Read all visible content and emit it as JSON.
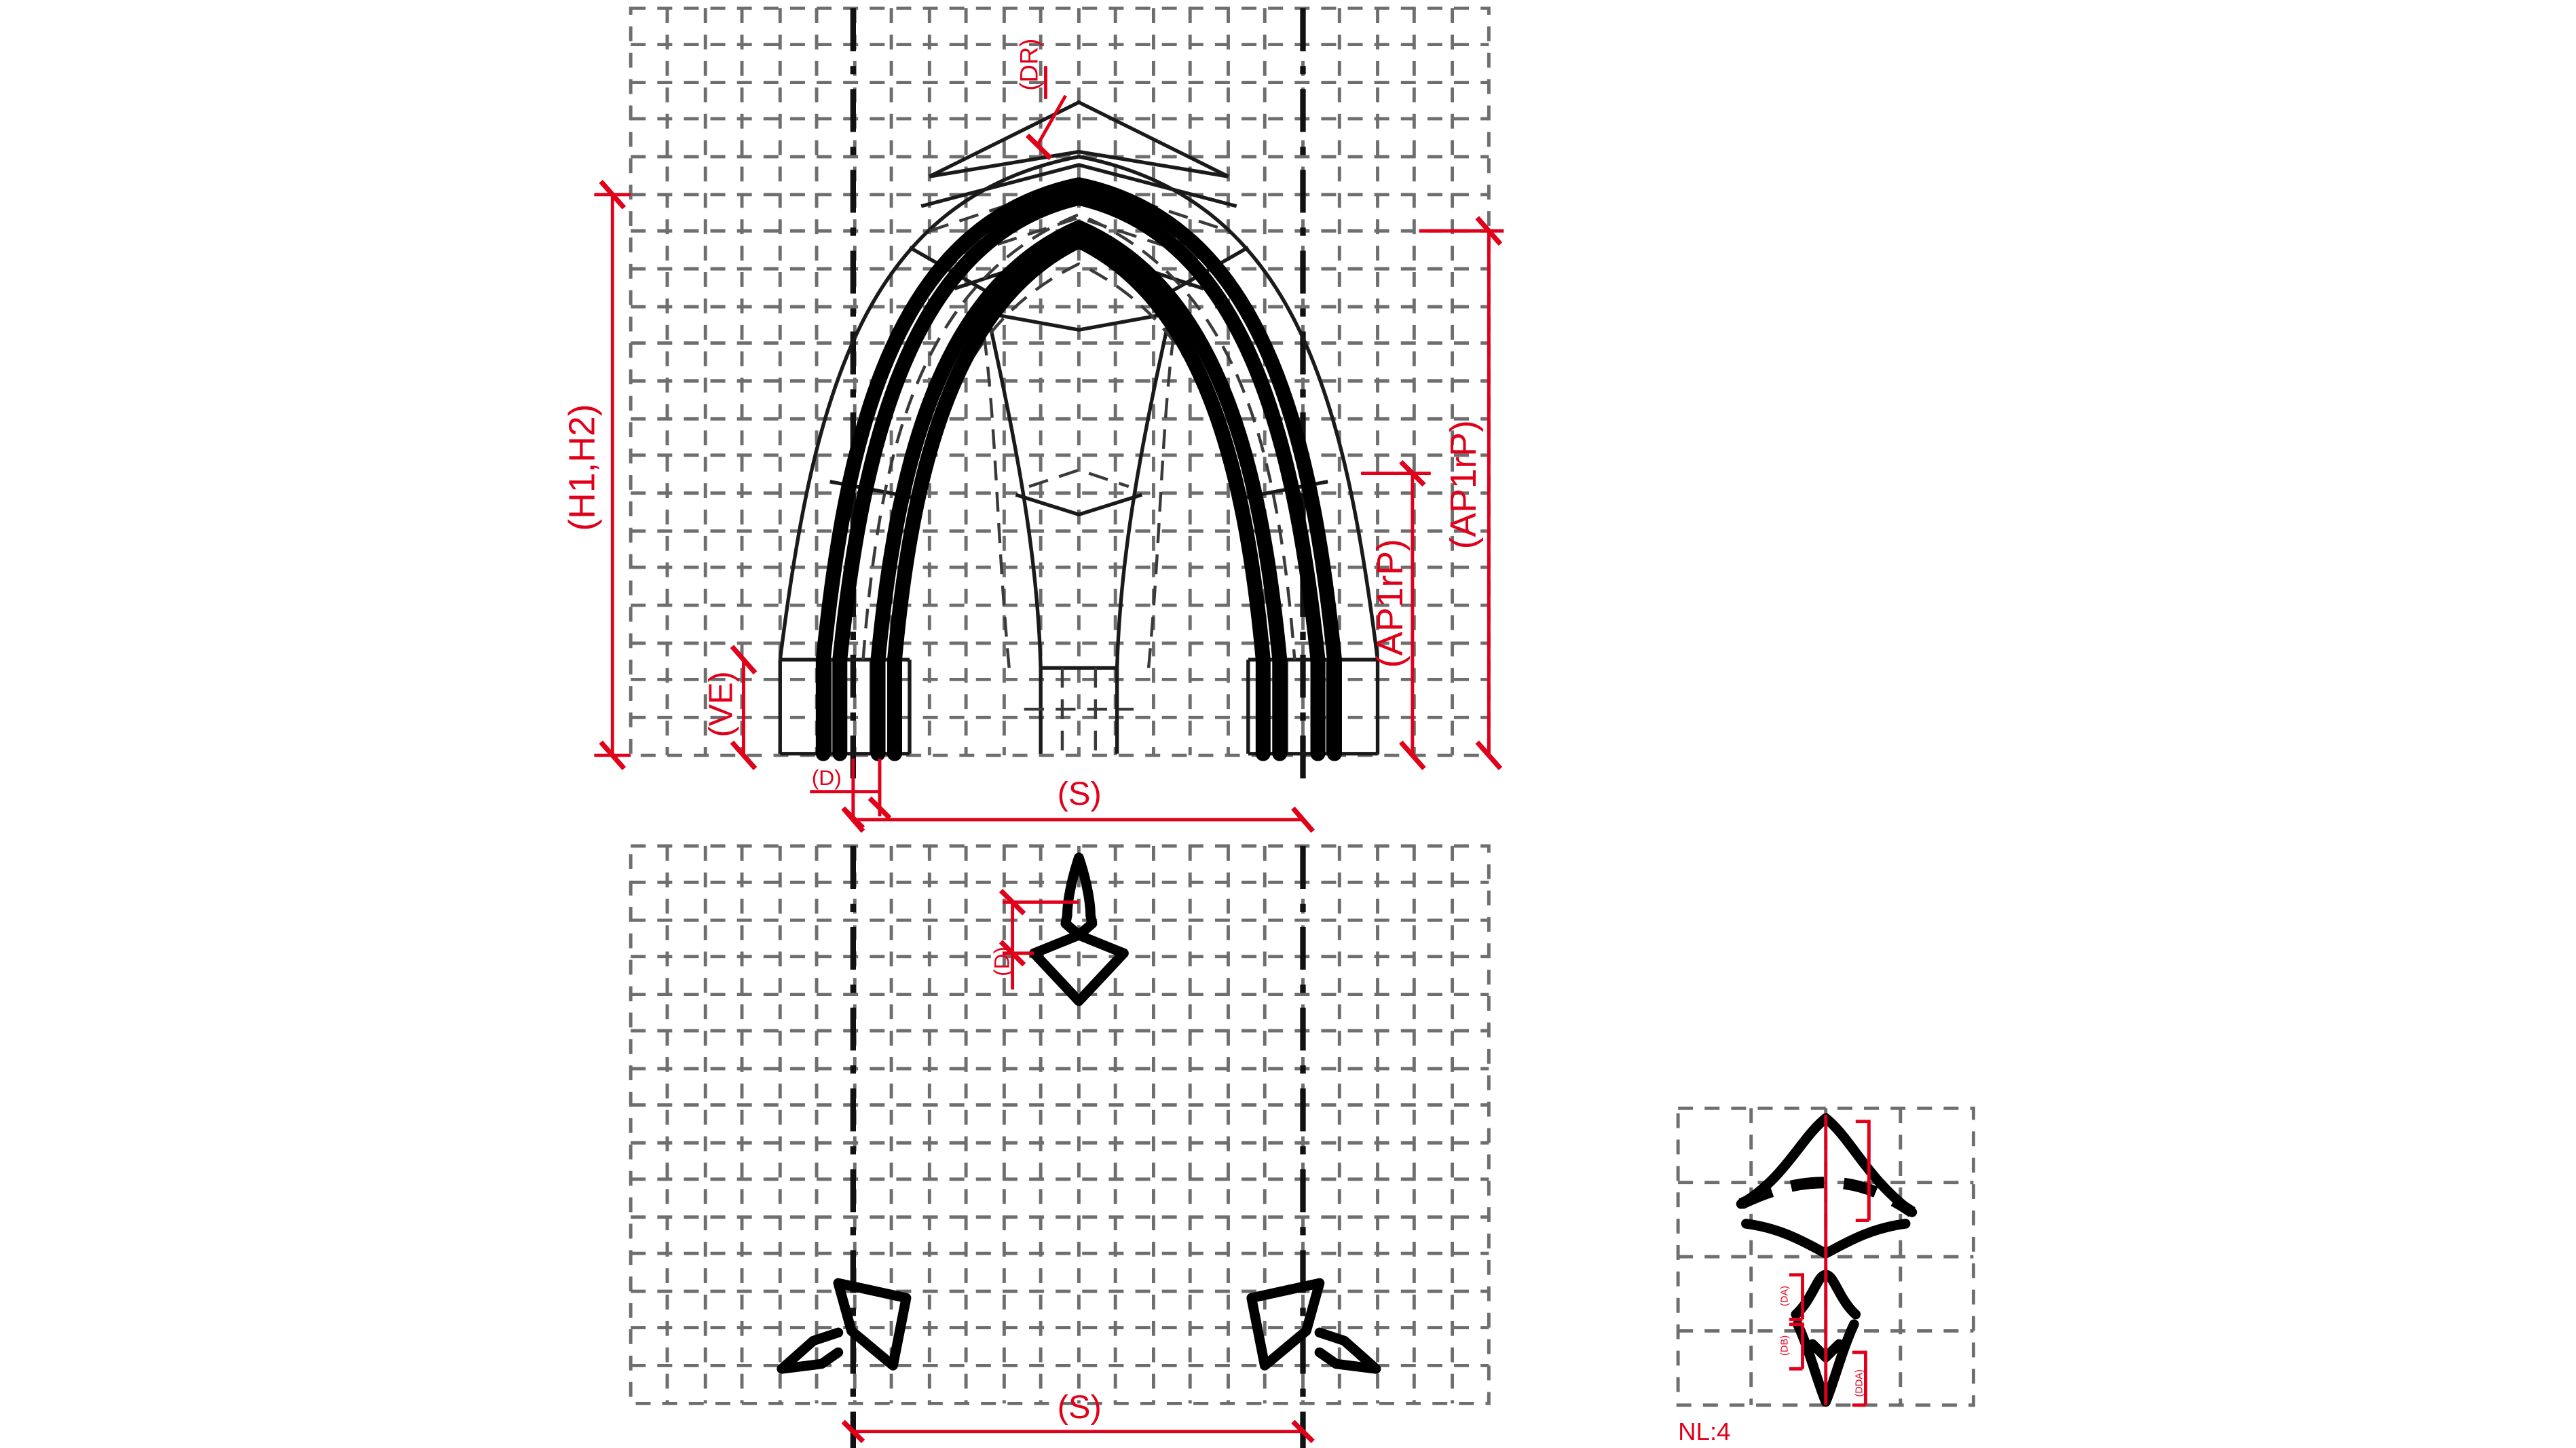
{
  "drawing": {
    "accent_color": "#e0001a",
    "line_color": "#000000",
    "grid_color": "#6e6e6e"
  },
  "labels": {
    "dr": "(DR)",
    "h1h2": "(H1,H2)",
    "ap1rp_inner": "(AP1rP)",
    "ap1rp_outer": "(AP1rP)",
    "ve": "(VE)",
    "d_elevation": "(D)",
    "s_elevation": "(S)",
    "d_plan": "(D)",
    "s_plan": "(S)",
    "nl": "NL:4",
    "detail_a": "(DA)",
    "detail_b": "(DB)",
    "detail_c": "(DDA)"
  }
}
